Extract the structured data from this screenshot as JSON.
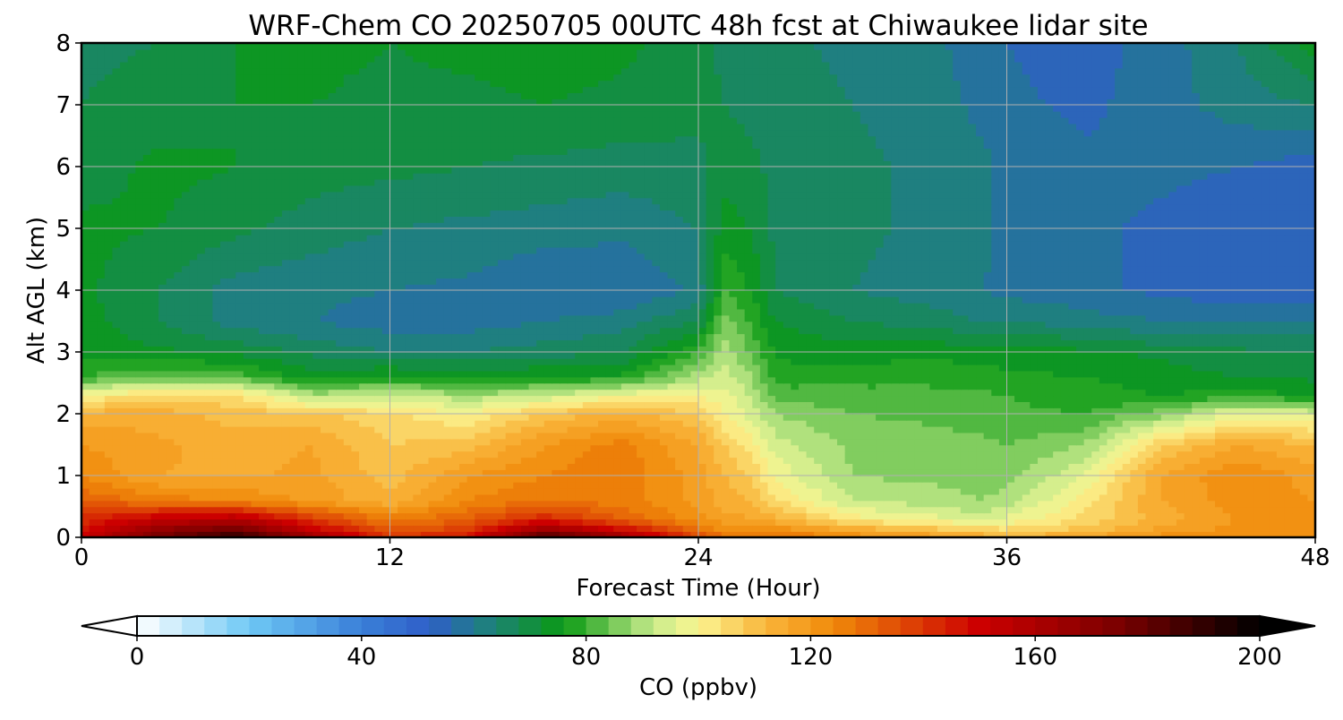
{
  "chart_data": {
    "type": "heatmap",
    "title": "WRF-Chem CO  20250705 00UTC 48h fcst at Chiwaukee lidar site",
    "xlabel": "Forecast Time (Hour)",
    "ylabel": "Alt AGL (km)",
    "xlim": [
      0,
      48
    ],
    "ylim": [
      0,
      8
    ],
    "xticks": [
      0,
      12,
      24,
      36,
      48
    ],
    "yticks": [
      0,
      1,
      2,
      3,
      4,
      5,
      6,
      7,
      8
    ],
    "grid": true,
    "x": [
      0,
      3,
      6,
      9,
      12,
      15,
      18,
      21,
      24,
      25,
      26,
      27,
      30,
      33,
      35,
      36,
      39,
      42,
      45,
      48
    ],
    "y": [
      0,
      0.1,
      0.3,
      0.6,
      1.0,
      1.5,
      2.0,
      2.3,
      2.6,
      3.0,
      3.5,
      4.0,
      5.0,
      6.0,
      7.0,
      8.0
    ],
    "values": [
      [
        150,
        176,
        192,
        165,
        140,
        145,
        188,
        165,
        136,
        128,
        125,
        128,
        122,
        118,
        115,
        112,
        116,
        120,
        120,
        120
      ],
      [
        145,
        168,
        178,
        152,
        132,
        138,
        168,
        150,
        128,
        122,
        120,
        122,
        115,
        110,
        106,
        104,
        108,
        116,
        120,
        120
      ],
      [
        140,
        152,
        156,
        138,
        124,
        130,
        142,
        130,
        120,
        116,
        114,
        112,
        100,
        96,
        92,
        95,
        103,
        112,
        118,
        118
      ],
      [
        130,
        124,
        122,
        117,
        111,
        122,
        126,
        124,
        117,
        112,
        110,
        103,
        90,
        88,
        86,
        88,
        100,
        114,
        120,
        118
      ],
      [
        122,
        114,
        113,
        115,
        108,
        118,
        122,
        125,
        116,
        110,
        106,
        97,
        86,
        85,
        84,
        84,
        94,
        114,
        122,
        116
      ],
      [
        118,
        115,
        112,
        114,
        106,
        108,
        118,
        124,
        114,
        106,
        100,
        92,
        85,
        84,
        83,
        82,
        86,
        106,
        114,
        110
      ],
      [
        112,
        112,
        108,
        107,
        103,
        98,
        107,
        112,
        106,
        98,
        93,
        86,
        82,
        81,
        80,
        79,
        78,
        84,
        96,
        93
      ],
      [
        98,
        104,
        103,
        88,
        92,
        87,
        91,
        97,
        98,
        96,
        90,
        80,
        80,
        79,
        79,
        78,
        76,
        74,
        76,
        74
      ],
      [
        78,
        82,
        80,
        72,
        75,
        73,
        74,
        75,
        88,
        92,
        87,
        76,
        76,
        77,
        76,
        75,
        74,
        72,
        70,
        69
      ],
      [
        73,
        71,
        69,
        65,
        62,
        62,
        64,
        66,
        78,
        88,
        82,
        73,
        72,
        73,
        72,
        72,
        71,
        69,
        67,
        66
      ],
      [
        72,
        66,
        60,
        58,
        56,
        56,
        58,
        60,
        66,
        84,
        78,
        70,
        66,
        64,
        62,
        62,
        60,
        58,
        58,
        58
      ],
      [
        71,
        66,
        60,
        59,
        58,
        57,
        54,
        54,
        59,
        78,
        74,
        66,
        62,
        60,
        58,
        57,
        55,
        53,
        51,
        52
      ],
      [
        71,
        70,
        67,
        64,
        62,
        61,
        60,
        59,
        62,
        72,
        70,
        65,
        63,
        61,
        59,
        57,
        55,
        53,
        51,
        51
      ],
      [
        68,
        71,
        70,
        68,
        67,
        66,
        65,
        64,
        65,
        68,
        67,
        65,
        63,
        61,
        59,
        57,
        55,
        55,
        54,
        52
      ],
      [
        66,
        68,
        70,
        70,
        69,
        69,
        70,
        69,
        67,
        66,
        65,
        64,
        62,
        60,
        57,
        55,
        53,
        56,
        60,
        62
      ],
      [
        65,
        66,
        70,
        71,
        70,
        71,
        72,
        71,
        68,
        65,
        64,
        63,
        61,
        59,
        56,
        54,
        52,
        56,
        62,
        72
      ]
    ],
    "colorbar": {
      "label": "CO  (ppbv)",
      "orientation": "horizontal",
      "placement": "bottom",
      "extend": "both",
      "min": 0,
      "max": 200,
      "ticks": [
        0,
        40,
        80,
        120,
        160,
        200
      ],
      "stops": [
        {
          "v": 0,
          "c": "#ffffff"
        },
        {
          "v": 20,
          "c": "#6ec8f5"
        },
        {
          "v": 40,
          "c": "#3a7fd8"
        },
        {
          "v": 52,
          "c": "#2f5fc8"
        },
        {
          "v": 62,
          "c": "#1f7f80"
        },
        {
          "v": 76,
          "c": "#0a9a14"
        },
        {
          "v": 92,
          "c": "#c8eb8c"
        },
        {
          "v": 100,
          "c": "#fbf591"
        },
        {
          "v": 112,
          "c": "#f9b53b"
        },
        {
          "v": 124,
          "c": "#f08a0a"
        },
        {
          "v": 150,
          "c": "#cc0000"
        },
        {
          "v": 175,
          "c": "#7a0000"
        },
        {
          "v": 200,
          "c": "#000000"
        }
      ]
    }
  }
}
